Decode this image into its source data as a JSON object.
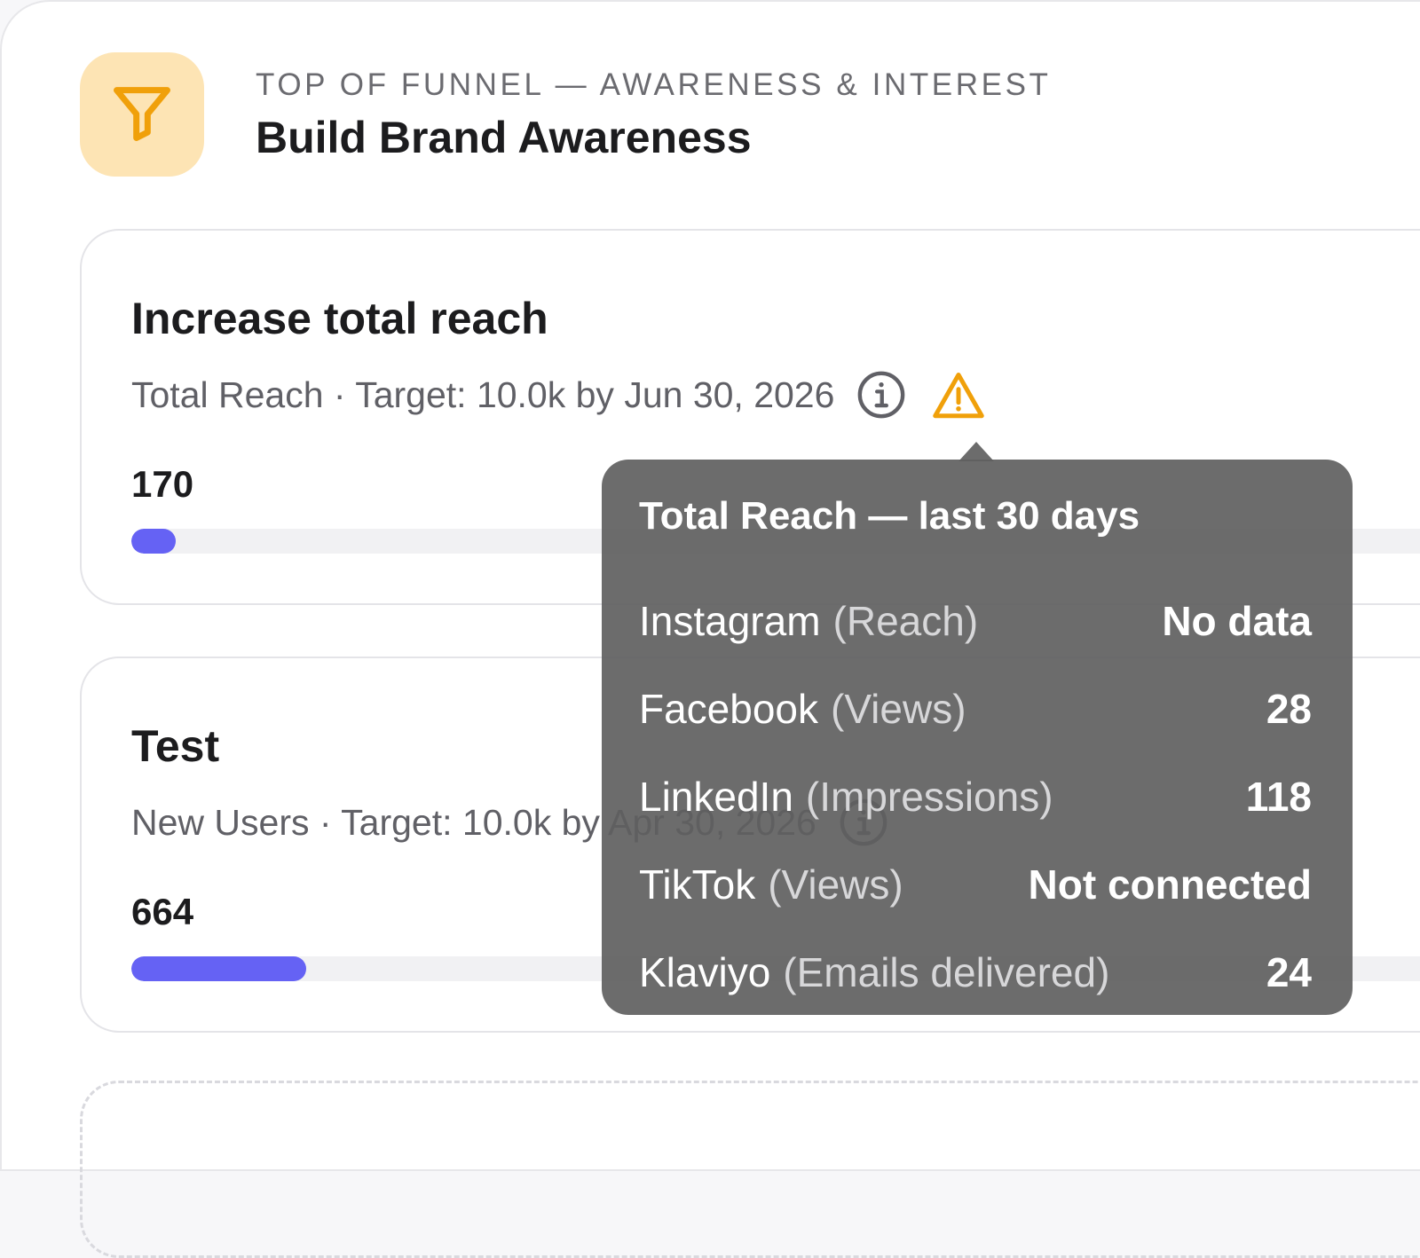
{
  "section": {
    "eyebrow": "TOP OF FUNNEL — AWARENESS & INTEREST",
    "title": "Build Brand Awareness",
    "icon": "funnel-icon",
    "icon_bg": "#fde4b4",
    "icon_color": "#f0a00a"
  },
  "goals": [
    {
      "title": "Increase total reach",
      "subtitle": "Total Reach · Target: 10.0k by Jun 30, 2026",
      "value": "170",
      "progress_fraction": 0.017,
      "icons": [
        "info-icon",
        "warning-icon"
      ]
    },
    {
      "title": "Test",
      "subtitle": "New Users · Target: 10.0k by Apr 30, 2026",
      "value": "664",
      "progress_fraction": 0.0664,
      "icons": [
        "info-icon"
      ]
    }
  ],
  "tooltip": {
    "title": "Total Reach — last 30 days",
    "rows": [
      {
        "label": "Instagram",
        "metric": "(Reach)",
        "value": "No data"
      },
      {
        "label": "Facebook",
        "metric": "(Views)",
        "value": "28"
      },
      {
        "label": "LinkedIn",
        "metric": "(Impressions)",
        "value": "118"
      },
      {
        "label": "TikTok",
        "metric": "(Views)",
        "value": "Not connected"
      },
      {
        "label": "Klaviyo",
        "metric": "(Emails delivered)",
        "value": "24"
      }
    ]
  },
  "colors": {
    "progress": "#6562f4",
    "track": "#f1f1f3",
    "warning": "#f0a00a",
    "tooltip_bg": "#5f5f5f"
  }
}
